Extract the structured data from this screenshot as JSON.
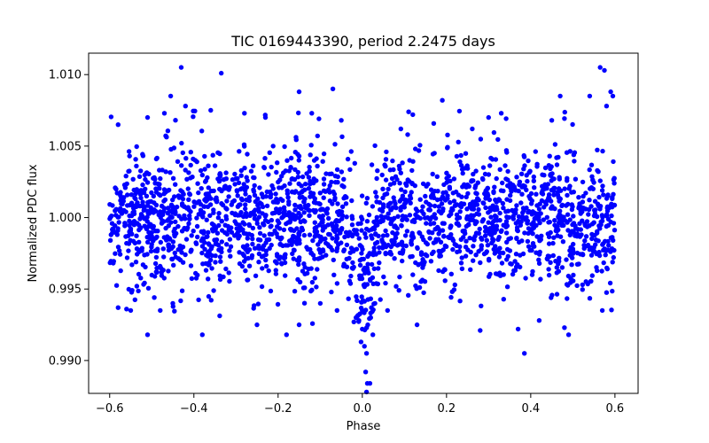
{
  "chart_data": {
    "type": "scatter",
    "title": "TIC 0169443390, period 2.2475 days",
    "xlabel": "Phase",
    "ylabel": "Normalized PDC flux",
    "xlim": [
      -0.65,
      0.655
    ],
    "ylim": [
      0.9877,
      1.0115
    ],
    "x_ticks": [
      -0.6,
      -0.4,
      -0.2,
      0.0,
      0.2,
      0.4,
      0.6
    ],
    "x_tick_labels": [
      "−0.6",
      "−0.4",
      "−0.2",
      "0.0",
      "0.2",
      "0.4",
      "0.6"
    ],
    "y_ticks": [
      0.99,
      0.995,
      1.0,
      1.005,
      1.01
    ],
    "y_tick_labels": [
      "0.990",
      "0.995",
      "1.000",
      "1.005",
      "1.010"
    ],
    "grid": false,
    "series": [
      {
        "name": "PDC flux",
        "color": "#0000ff",
        "points": [
          [
            -0.43,
            1.0105
          ],
          [
            -0.335,
            1.0101
          ],
          [
            0.565,
            1.0105
          ],
          [
            0.575,
            1.0103
          ],
          [
            -0.455,
            1.0085
          ],
          [
            -0.15,
            1.0088
          ],
          [
            -0.07,
            1.009
          ],
          [
            0.19,
            1.0082
          ],
          [
            0.54,
            1.0085
          ],
          [
            0.59,
            1.0088
          ],
          [
            0.595,
            1.0085
          ],
          [
            -0.58,
            1.0065
          ],
          [
            -0.51,
            1.007
          ],
          [
            -0.47,
            1.0073
          ],
          [
            -0.42,
            1.0078
          ],
          [
            -0.36,
            1.0075
          ],
          [
            -0.28,
            1.0073
          ],
          [
            -0.23,
            1.007
          ],
          [
            -0.12,
            1.0073
          ],
          [
            -0.05,
            1.0068
          ],
          [
            0.11,
            1.0074
          ],
          [
            0.12,
            1.0072
          ],
          [
            0.3,
            1.007
          ],
          [
            0.33,
            1.0073
          ],
          [
            0.45,
            1.0068
          ],
          [
            0.58,
            1.0078
          ],
          [
            0.47,
            1.0085
          ],
          [
            -0.008,
            0.9928
          ],
          [
            0.0,
            0.9922
          ],
          [
            0.005,
            0.991
          ],
          [
            0.01,
            0.9905
          ],
          [
            0.008,
            0.9892
          ],
          [
            0.012,
            0.9884
          ],
          [
            0.018,
            0.9884
          ],
          [
            0.01,
            0.9878
          ],
          [
            -0.02,
            0.9927
          ],
          [
            0.02,
            0.993
          ],
          [
            0.03,
            0.994
          ],
          [
            -0.015,
            0.993
          ],
          [
            0.0,
            0.9935
          ],
          [
            0.013,
            0.9925
          ],
          [
            0.025,
            0.9918
          ],
          [
            -0.003,
            0.9913
          ],
          [
            -0.58,
            0.9937
          ],
          [
            -0.55,
            0.9935
          ],
          [
            -0.51,
            0.9918
          ],
          [
            -0.48,
            0.9935
          ],
          [
            -0.38,
            0.9918
          ],
          [
            -0.25,
            0.9925
          ],
          [
            -0.18,
            0.9918
          ],
          [
            -0.15,
            0.9925
          ],
          [
            0.13,
            0.9925
          ],
          [
            0.28,
            0.9921
          ],
          [
            0.37,
            0.9922
          ],
          [
            0.385,
            0.9905
          ],
          [
            0.42,
            0.9928
          ],
          [
            0.48,
            0.9923
          ],
          [
            0.49,
            0.9918
          ],
          [
            0.57,
            0.9935
          ],
          [
            -0.06,
            0.9935
          ],
          [
            0.06,
            0.9935
          ],
          [
            -0.45,
            0.994
          ],
          [
            -0.56,
            0.9936
          ]
        ]
      }
    ]
  }
}
